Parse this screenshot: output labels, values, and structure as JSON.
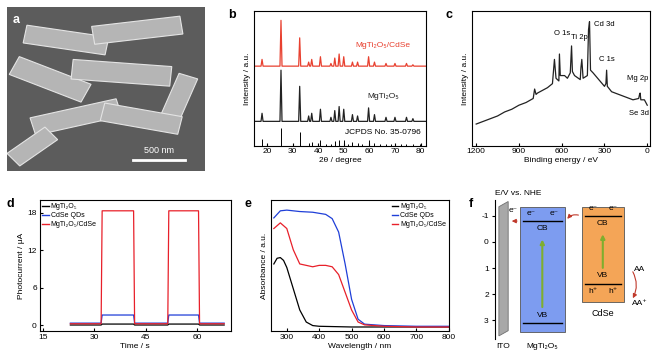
{
  "chart_data": [
    {
      "type": "image",
      "label": "a",
      "scale_bar": "500 nm"
    },
    {
      "type": "line",
      "label": "b",
      "xlabel": "2θ / degree",
      "ylabel": "Intensity / a.u.",
      "xlim": [
        15,
        82
      ],
      "ylim": [
        0,
        10
      ],
      "xticks": [
        20,
        30,
        40,
        50,
        60,
        70,
        80
      ],
      "tick_labels": "x",
      "x": [
        15,
        17.7,
        18.1,
        18.5,
        25.1,
        25.5,
        25.9,
        32.4,
        32.8,
        33.2,
        35.9,
        36.3,
        36.7,
        37.1,
        37.5,
        37.9,
        40.5,
        40.9,
        41.3,
        44.6,
        45.0,
        45.4,
        46.1,
        46.5,
        46.9,
        47.8,
        48.2,
        48.6,
        49.6,
        50.0,
        50.4,
        53.0,
        53.4,
        53.8,
        55.0,
        55.4,
        55.8,
        59.3,
        59.7,
        60.1,
        61.6,
        62.0,
        62.4,
        66.1,
        66.5,
        66.9,
        69.6,
        70.0,
        70.4,
        74.1,
        74.5,
        74.9,
        76.6,
        77.0,
        77.4,
        82
      ],
      "series": [
        {
          "name": "MgTi₂O₅/CdSe",
          "color": "#e8402f",
          "values": [
            5.9,
            5.9,
            6.4,
            5.9,
            5.9,
            9.3,
            5.9,
            5.9,
            8.0,
            5.9,
            5.9,
            6.2,
            5.9,
            5.9,
            6.4,
            5.9,
            5.9,
            6.6,
            5.9,
            5.9,
            6.1,
            5.9,
            5.9,
            6.5,
            5.9,
            5.9,
            6.8,
            5.9,
            5.9,
            6.6,
            5.9,
            5.9,
            6.2,
            5.9,
            5.9,
            6.2,
            5.9,
            5.9,
            6.6,
            5.9,
            5.9,
            6.2,
            5.9,
            5.9,
            6.1,
            5.9,
            5.9,
            6.1,
            5.9,
            5.9,
            6.1,
            5.9,
            5.9,
            6.0,
            5.9,
            5.9
          ]
        },
        {
          "name": "MgTi₂O₅",
          "color": "#222222",
          "values": [
            1.8,
            1.8,
            2.4,
            1.8,
            1.8,
            5.6,
            1.8,
            1.8,
            4.4,
            1.8,
            1.8,
            2.2,
            1.8,
            1.8,
            2.4,
            1.8,
            1.8,
            2.7,
            1.8,
            1.8,
            2.1,
            1.8,
            1.8,
            2.6,
            1.8,
            1.8,
            2.9,
            1.8,
            1.8,
            2.7,
            1.8,
            1.8,
            2.3,
            1.8,
            1.8,
            2.2,
            1.8,
            1.8,
            2.8,
            1.8,
            1.8,
            2.3,
            1.8,
            1.8,
            2.1,
            1.8,
            1.8,
            2.1,
            1.8,
            1.8,
            2.1,
            1.8,
            1.8,
            2.0,
            1.8,
            1.8
          ]
        },
        {
          "name": "JCPDS No. 35-0796",
          "type": "stem",
          "color": "#000000",
          "x": [
            18.1,
            25.5,
            32.8,
            36.3,
            37.5,
            40.9,
            43.2,
            45.0,
            46.5,
            48.2,
            50.0,
            51.6,
            53.4,
            55.4,
            57.3,
            59.7,
            62.0,
            64.1,
            66.5,
            68.3,
            70.0,
            72.4,
            74.5,
            77.0,
            79.6
          ],
          "values": [
            0.5,
            1.3,
            1.0,
            0.2,
            0.3,
            0.4,
            0.1,
            0.15,
            0.35,
            0.45,
            0.4,
            0.1,
            0.25,
            0.2,
            0.1,
            0.4,
            0.2,
            0.1,
            0.15,
            0.1,
            0.15,
            0.1,
            0.15,
            0.1,
            0.1
          ]
        }
      ]
    },
    {
      "type": "line",
      "label": "c",
      "xlabel": "Binding energy / eV",
      "ylabel": "Intensity / a.u.",
      "xlim": [
        1230,
        -20
      ],
      "ylim": [
        0,
        10
      ],
      "xticks": [
        1200,
        900,
        600,
        300,
        0
      ],
      "tick_labels": "x",
      "x": [
        1200,
        1150,
        1100,
        1050,
        1000,
        950,
        900,
        850,
        800,
        790,
        780,
        770,
        700,
        665,
        651,
        640,
        620,
        616,
        610,
        580,
        560,
        540,
        531,
        525,
        510,
        470,
        465,
        459,
        450,
        420,
        412,
        405,
        398,
        380,
        300,
        290,
        285,
        280,
        250,
        200,
        150,
        100,
        60,
        54,
        50,
        45,
        20,
        0
      ],
      "series": [
        {
          "color": "#222222",
          "values": [
            1.6,
            1.8,
            2.0,
            2.2,
            2.5,
            2.7,
            3.0,
            3.2,
            3.5,
            4.2,
            3.8,
            3.9,
            4.3,
            4.6,
            6.4,
            5.0,
            4.8,
            6.8,
            5.2,
            5.2,
            5.0,
            5.4,
            7.4,
            5.5,
            5.2,
            4.9,
            5.8,
            6.4,
            5.0,
            5.2,
            8.6,
            9.2,
            5.6,
            5.4,
            4.4,
            4.6,
            5.6,
            4.4,
            4.0,
            3.8,
            3.6,
            3.4,
            3.5,
            3.8,
            3.9,
            3.4,
            3.4,
            3.0
          ]
        }
      ],
      "annotations": [
        {
          "text": "O 1s",
          "x": 531
        },
        {
          "text": "Cd 3d",
          "x": 405
        },
        {
          "text": "Ti 2p",
          "x": 459
        },
        {
          "text": "C 1s",
          "x": 285
        },
        {
          "text": "Mg 2p",
          "x": 50
        },
        {
          "text": "Se 3d",
          "x": 54
        }
      ]
    },
    {
      "type": "line",
      "label": "d",
      "xlabel": "Time / s",
      "ylabel": "Photocurrent / μA",
      "xlim": [
        14,
        70
      ],
      "ylim": [
        -1,
        20
      ],
      "xticks": [
        15,
        30,
        45,
        60
      ],
      "yticks": [
        0,
        6,
        12,
        18
      ],
      "legend": "upper left",
      "x": [
        23,
        32,
        32.3,
        41.5,
        41.8,
        51.5,
        51.8,
        60.5,
        60.8,
        68
      ],
      "series": [
        {
          "name": "MgTi₂O₅",
          "color": "#000000",
          "values": [
            0,
            0,
            0.15,
            0.15,
            0,
            0,
            0.15,
            0.15,
            0,
            0
          ]
        },
        {
          "name": "CdSe QDs",
          "color": "#1f3fd8",
          "values": [
            0.3,
            0.3,
            1.6,
            1.6,
            0.3,
            0.3,
            1.6,
            1.6,
            0.3,
            0.3
          ]
        },
        {
          "name": "MgTi₂O₅/CdSe",
          "color": "#e8202a",
          "values": [
            0.2,
            0.2,
            18.3,
            18.3,
            0.2,
            0.2,
            18.3,
            18.3,
            0.2,
            0.2
          ]
        }
      ]
    },
    {
      "type": "line",
      "label": "e",
      "xlabel": "Wavelength / nm",
      "ylabel": "Absorbance / a.u.",
      "xlim": [
        250,
        800
      ],
      "ylim": [
        -0.5,
        18
      ],
      "xticks": [
        300,
        400,
        500,
        600,
        700,
        800
      ],
      "tick_labels": "x",
      "legend": "upper right",
      "series": [
        {
          "name": "MgTi₂O₅",
          "color": "#000000",
          "x": [
            260,
            270,
            280,
            290,
            300,
            320,
            340,
            360,
            380,
            400,
            500,
            600,
            700,
            800
          ],
          "values": [
            9.0,
            9.8,
            9.9,
            9.5,
            8.5,
            5.5,
            2.5,
            0.8,
            0.3,
            0.2,
            0.1,
            0.1,
            0.1,
            0.1
          ]
        },
        {
          "name": "CdSe QDs",
          "color": "#1f3fd8",
          "x": [
            260,
            280,
            300,
            340,
            380,
            420,
            440,
            460,
            480,
            500,
            520,
            540,
            600,
            700,
            800
          ],
          "values": [
            15.5,
            16.5,
            16.6,
            16.4,
            16.3,
            16.0,
            15.4,
            13.5,
            9.0,
            4.0,
            1.2,
            0.5,
            0.3,
            0.2,
            0.2
          ]
        },
        {
          "name": "MgTi₂O₅/CdSe",
          "color": "#e8202a",
          "x": [
            260,
            280,
            300,
            320,
            340,
            360,
            380,
            400,
            420,
            440,
            460,
            480,
            500,
            520,
            540,
            600,
            700,
            800
          ],
          "values": [
            14.0,
            14.8,
            14.0,
            11.0,
            9.0,
            8.8,
            8.6,
            8.8,
            8.8,
            8.6,
            7.5,
            5.0,
            2.5,
            0.8,
            0.4,
            0.2,
            0.1,
            0.1
          ]
        }
      ]
    },
    {
      "type": "diagram",
      "label": "f",
      "ylabel": "E/V vs. NHE",
      "ylim": [
        3.7,
        -1.6
      ],
      "yticks": [
        -1,
        0,
        1,
        2,
        3
      ],
      "tick_labels": "y",
      "electrode": "ITO",
      "band_labels": [
        "CB",
        "VB"
      ],
      "electron": "e⁻",
      "hole": "h⁺",
      "donor": "AA",
      "donor_oxidized": "AA⁺",
      "materials": [
        {
          "name": "MgTi₂O₅",
          "color": "#7d9cf0",
          "cb": -0.8,
          "vb": 3.1
        },
        {
          "name": "CdSe",
          "color": "#f4a557",
          "cb": -1.0,
          "vb": 1.6
        }
      ]
    }
  ]
}
